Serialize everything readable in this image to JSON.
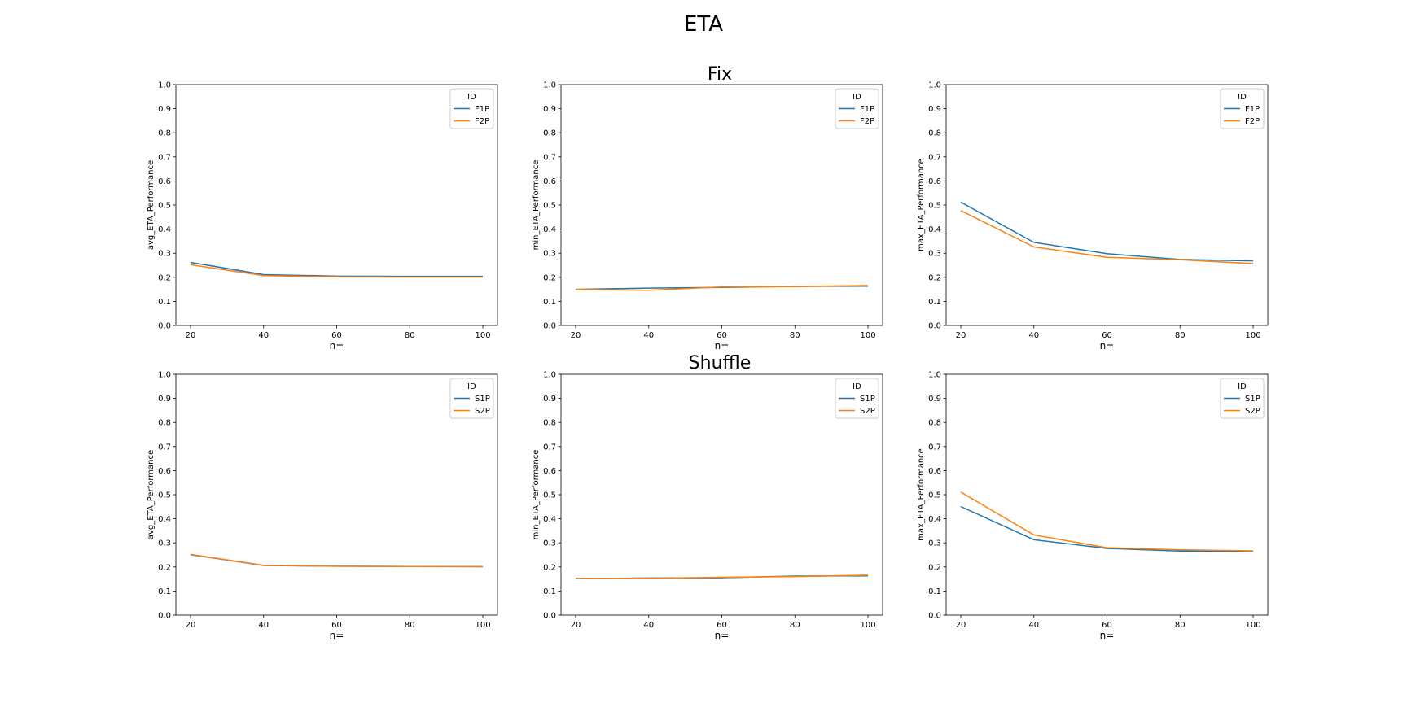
{
  "figure": {
    "title": "ETA",
    "row_titles": [
      "Fix",
      "Shuffle"
    ]
  },
  "colors": {
    "series1": "#1f77b4",
    "series2": "#ff7f0e"
  },
  "chart_data": [
    {
      "type": "line",
      "ylabel": "avg_ETA_Performance",
      "xlabel": "n=",
      "x": [
        20,
        40,
        60,
        80,
        100
      ],
      "ylim": [
        0,
        1
      ],
      "xticks": [
        20,
        40,
        60,
        80,
        100
      ],
      "yticks": [
        "0.0",
        "0.1",
        "0.2",
        "0.3",
        "0.4",
        "0.5",
        "0.6",
        "0.7",
        "0.8",
        "0.9",
        "1.0"
      ],
      "legend_title": "ID",
      "legend_loc": "upper right",
      "series": [
        {
          "name": "F1P",
          "values": [
            0.262,
            0.211,
            0.205,
            0.204,
            0.204
          ]
        },
        {
          "name": "F2P",
          "values": [
            0.252,
            0.207,
            0.202,
            0.201,
            0.201
          ]
        }
      ]
    },
    {
      "type": "line",
      "ylabel": "min_ETA_Performance",
      "xlabel": "n=",
      "x": [
        20,
        40,
        60,
        80,
        100
      ],
      "ylim": [
        0,
        1
      ],
      "xticks": [
        20,
        40,
        60,
        80,
        100
      ],
      "yticks": [
        "0.0",
        "0.1",
        "0.2",
        "0.3",
        "0.4",
        "0.5",
        "0.6",
        "0.7",
        "0.8",
        "0.9",
        "1.0"
      ],
      "legend_title": "ID",
      "legend_loc": "upper right",
      "series": [
        {
          "name": "F1P",
          "values": [
            0.15,
            0.155,
            0.158,
            0.162,
            0.163
          ]
        },
        {
          "name": "F2P",
          "values": [
            0.15,
            0.146,
            0.16,
            0.161,
            0.166
          ]
        }
      ]
    },
    {
      "type": "line",
      "ylabel": "max_ETA_Performance",
      "xlabel": "n=",
      "x": [
        20,
        40,
        60,
        80,
        100
      ],
      "ylim": [
        0,
        1
      ],
      "xticks": [
        20,
        40,
        60,
        80,
        100
      ],
      "yticks": [
        "0.0",
        "0.1",
        "0.2",
        "0.3",
        "0.4",
        "0.5",
        "0.6",
        "0.7",
        "0.8",
        "0.9",
        "1.0"
      ],
      "legend_title": "ID",
      "legend_loc": "upper right",
      "series": [
        {
          "name": "F1P",
          "values": [
            0.512,
            0.345,
            0.298,
            0.274,
            0.268
          ]
        },
        {
          "name": "F2P",
          "values": [
            0.477,
            0.326,
            0.283,
            0.273,
            0.257
          ]
        }
      ]
    },
    {
      "type": "line",
      "ylabel": "avg_ETA_Performance",
      "xlabel": "n=",
      "x": [
        20,
        40,
        60,
        80,
        100
      ],
      "ylim": [
        0,
        1
      ],
      "xticks": [
        20,
        40,
        60,
        80,
        100
      ],
      "yticks": [
        "0.0",
        "0.1",
        "0.2",
        "0.3",
        "0.4",
        "0.5",
        "0.6",
        "0.7",
        "0.8",
        "0.9",
        "1.0"
      ],
      "legend_title": "ID",
      "legend_loc": "upper right",
      "series": [
        {
          "name": "S1P",
          "values": [
            0.251,
            0.206,
            0.203,
            0.202,
            0.201
          ]
        },
        {
          "name": "S2P",
          "values": [
            0.252,
            0.207,
            0.203,
            0.202,
            0.202
          ]
        }
      ]
    },
    {
      "type": "line",
      "ylabel": "min_ETA_Performance",
      "xlabel": "n=",
      "x": [
        20,
        40,
        60,
        80,
        100
      ],
      "ylim": [
        0,
        1
      ],
      "xticks": [
        20,
        40,
        60,
        80,
        100
      ],
      "yticks": [
        "0.0",
        "0.1",
        "0.2",
        "0.3",
        "0.4",
        "0.5",
        "0.6",
        "0.7",
        "0.8",
        "0.9",
        "1.0"
      ],
      "legend_title": "ID",
      "legend_loc": "upper right",
      "series": [
        {
          "name": "S1P",
          "values": [
            0.151,
            0.154,
            0.155,
            0.162,
            0.163
          ]
        },
        {
          "name": "S2P",
          "values": [
            0.153,
            0.153,
            0.157,
            0.16,
            0.166
          ]
        }
      ]
    },
    {
      "type": "line",
      "ylabel": "max_ETA_Performance",
      "xlabel": "n=",
      "x": [
        20,
        40,
        60,
        80,
        100
      ],
      "ylim": [
        0,
        1
      ],
      "xticks": [
        20,
        40,
        60,
        80,
        100
      ],
      "yticks": [
        "0.0",
        "0.1",
        "0.2",
        "0.3",
        "0.4",
        "0.5",
        "0.6",
        "0.7",
        "0.8",
        "0.9",
        "1.0"
      ],
      "legend_title": "ID",
      "legend_loc": "upper right",
      "series": [
        {
          "name": "S1P",
          "values": [
            0.451,
            0.313,
            0.277,
            0.266,
            0.266
          ]
        },
        {
          "name": "S2P",
          "values": [
            0.511,
            0.333,
            0.28,
            0.271,
            0.267
          ]
        }
      ]
    }
  ]
}
